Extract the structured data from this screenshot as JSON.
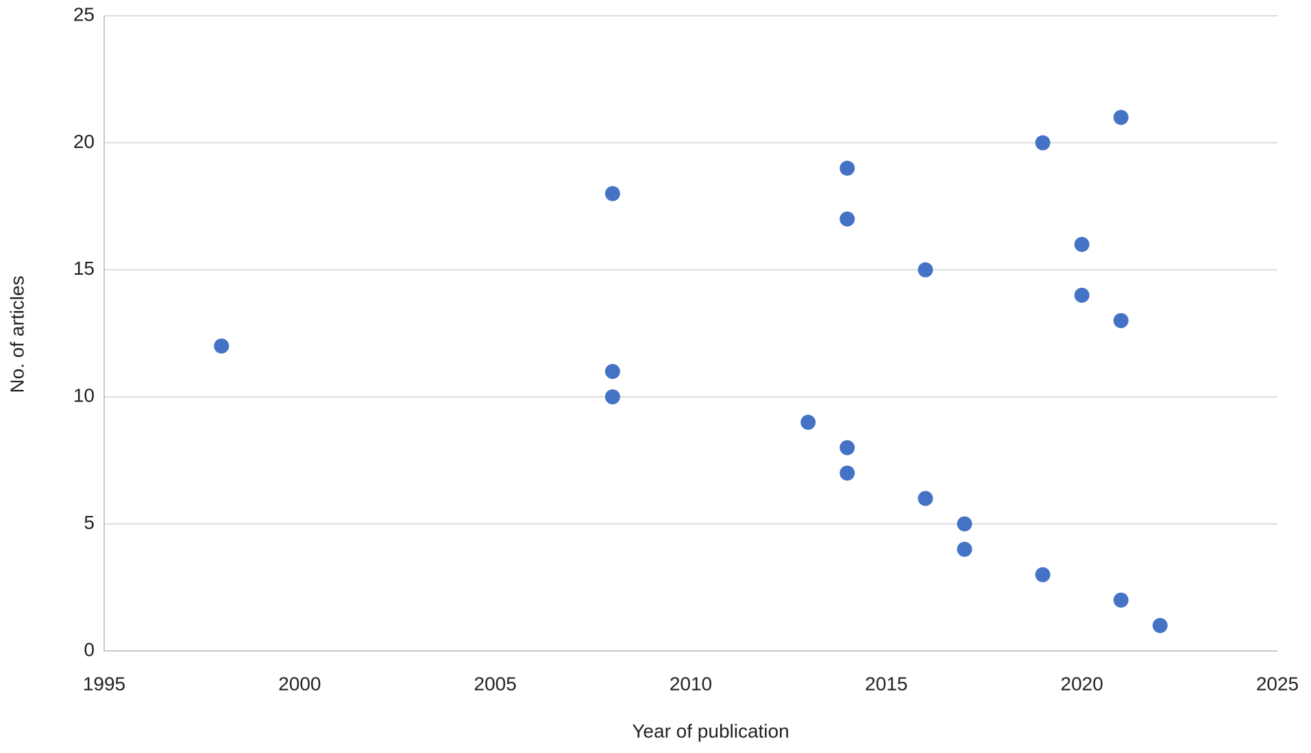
{
  "chart_data": {
    "type": "scatter",
    "x_label": "Year of publication",
    "y_label": "No. of articles",
    "x": [
      1998,
      2008,
      2008,
      2008,
      2013,
      2014,
      2014,
      2014,
      2014,
      2016,
      2016,
      2017,
      2017,
      2019,
      2019,
      2020,
      2020,
      2021,
      2021,
      2021,
      2022
    ],
    "values": [
      12,
      18,
      11,
      10,
      9,
      19,
      17,
      8,
      7,
      15,
      6,
      5,
      4,
      20,
      3,
      16,
      14,
      21,
      13,
      2,
      1
    ],
    "color": "#4472c4",
    "xlim": [
      1995,
      2025
    ],
    "xticks": [
      1995,
      2000,
      2005,
      2010,
      2015,
      2020,
      2025
    ],
    "ylim": [
      0,
      25
    ],
    "yticks": [
      0,
      5,
      10,
      15,
      20,
      25
    ],
    "grid": true
  }
}
